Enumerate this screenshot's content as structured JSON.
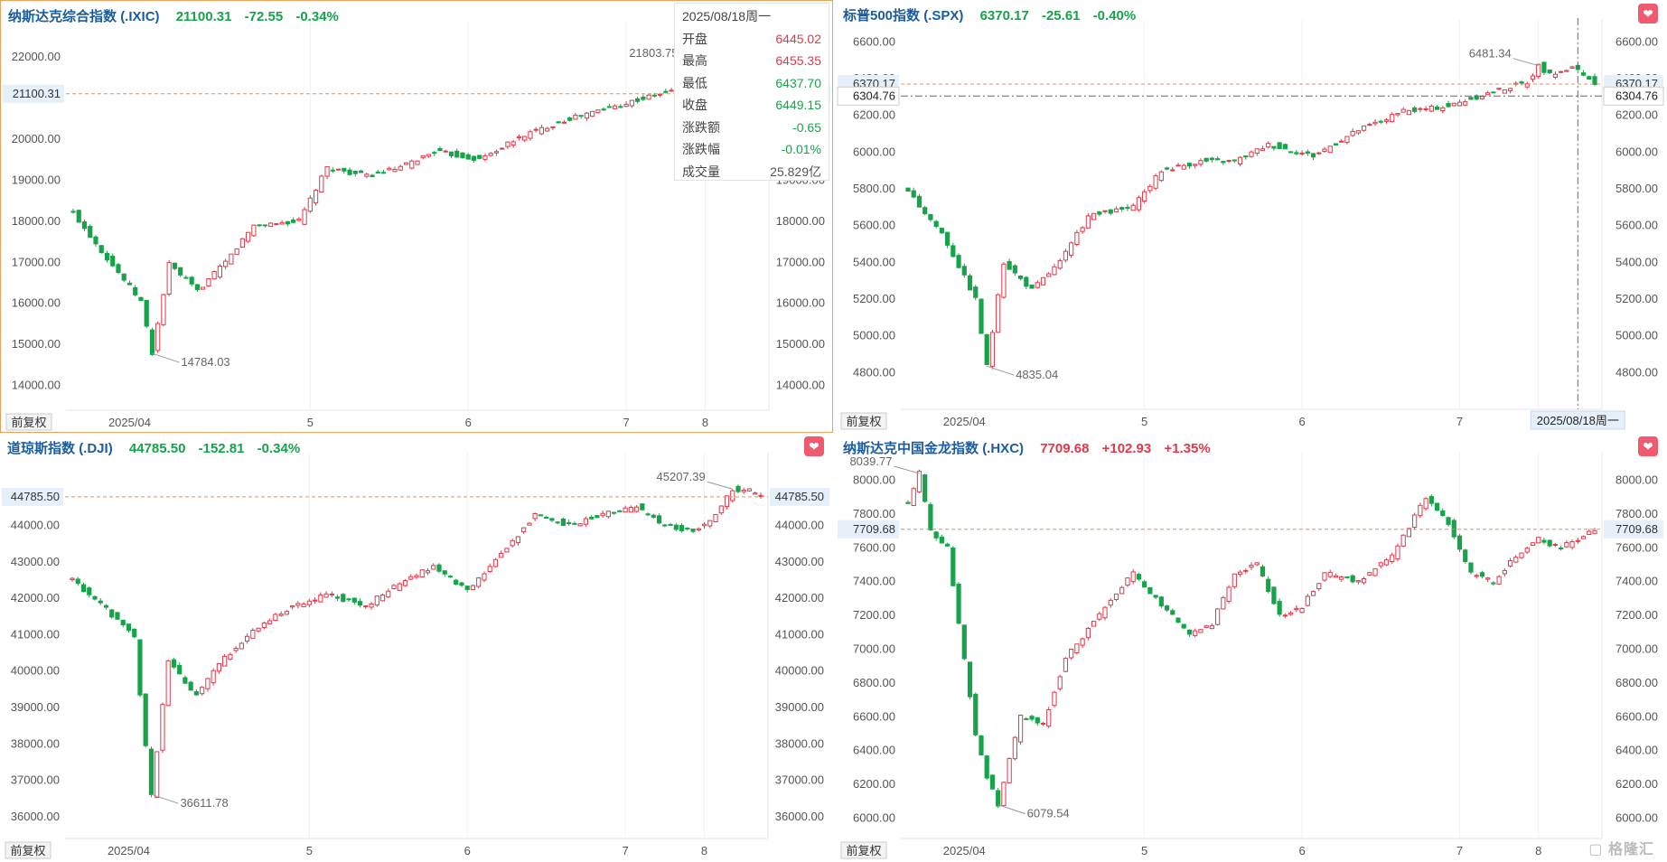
{
  "colors": {
    "up": "#e0394a",
    "down": "#16a34a",
    "accent": "#1b5c9e",
    "dash": "#e39060"
  },
  "footer_btn": "前复权",
  "watermark": "格隆汇",
  "panels": [
    {
      "name": "纳斯达克综合指数",
      "code": "(.IXIC)",
      "price": "21100.31",
      "change": "-72.55",
      "pct": "-0.34%",
      "dir": "down",
      "active": true,
      "heart_faded": true,
      "chart_data": {
        "type": "candlestick",
        "y_ticks": [
          "22000.00",
          "21000.00",
          "20000.00",
          "19000.00",
          "18000.00",
          "17000.00",
          "16000.00",
          "15000.00",
          "14000.00"
        ],
        "ylim": [
          13400,
          22700
        ],
        "x_labels": [
          "2025/04",
          "5",
          "6",
          "7",
          "8"
        ],
        "high_label": "21803.75",
        "low_label": "14784.03",
        "last": 21100.31,
        "last_label": "21100.31",
        "anchors": [
          [
            0,
            18200
          ],
          [
            6,
            17100
          ],
          [
            12,
            16050
          ],
          [
            14,
            14784
          ],
          [
            17,
            16950
          ],
          [
            22,
            16300
          ],
          [
            27,
            17000
          ],
          [
            32,
            17900
          ],
          [
            40,
            18000
          ],
          [
            45,
            19300
          ],
          [
            52,
            19100
          ],
          [
            58,
            19300
          ],
          [
            64,
            19700
          ],
          [
            72,
            19500
          ],
          [
            80,
            20100
          ],
          [
            88,
            20500
          ],
          [
            96,
            20800
          ],
          [
            104,
            21100
          ],
          [
            110,
            21300
          ],
          [
            112,
            21803
          ],
          [
            115,
            21100
          ],
          [
            118,
            21450
          ],
          [
            122,
            21200
          ]
        ]
      }
    },
    {
      "name": "标普500指数",
      "code": "(.SPX)",
      "price": "6370.17",
      "change": "-25.61",
      "pct": "-0.40%",
      "dir": "down",
      "active": false,
      "heart_faded": false,
      "chart_data": {
        "type": "candlestick",
        "y_ticks": [
          "6600.00",
          "6400.00",
          "6200.00",
          "6000.00",
          "5800.00",
          "5600.00",
          "5400.00",
          "5200.00",
          "5000.00",
          "4800.00"
        ],
        "ylim": [
          4600,
          6680
        ],
        "x_labels": [
          "2025/04",
          "5",
          "6",
          "7",
          "8"
        ],
        "high_label": "6481.34",
        "low_label": "4835.04",
        "last": 6370.17,
        "last_label": "6370.17",
        "cross_label": "6304.76",
        "cross_date": "2025/08/18周一",
        "anchors": [
          [
            0,
            5780
          ],
          [
            6,
            5560
          ],
          [
            12,
            5200
          ],
          [
            14,
            4835
          ],
          [
            17,
            5400
          ],
          [
            22,
            5250
          ],
          [
            27,
            5400
          ],
          [
            32,
            5650
          ],
          [
            40,
            5700
          ],
          [
            45,
            5900
          ],
          [
            52,
            5950
          ],
          [
            58,
            5950
          ],
          [
            64,
            6040
          ],
          [
            72,
            5980
          ],
          [
            80,
            6120
          ],
          [
            88,
            6220
          ],
          [
            96,
            6250
          ],
          [
            104,
            6330
          ],
          [
            110,
            6380
          ],
          [
            112,
            6470
          ],
          [
            114,
            6420
          ],
          [
            118,
            6460
          ],
          [
            122,
            6370
          ]
        ]
      }
    },
    {
      "name": "道琼斯指数",
      "code": "(.DJI)",
      "price": "44785.50",
      "change": "-152.81",
      "pct": "-0.34%",
      "dir": "down",
      "active": false,
      "heart_faded": false,
      "chart_data": {
        "type": "candlestick",
        "y_ticks": [
          "44000.00",
          "43000.00",
          "42000.00",
          "41000.00",
          "40000.00",
          "39000.00",
          "38000.00",
          "37000.00",
          "36000.00"
        ],
        "ylim": [
          35400,
          45800
        ],
        "x_labels": [
          "2025/04",
          "5",
          "6",
          "7",
          "8"
        ],
        "high_label": "45207.39",
        "low_label": "36611.78",
        "last": 44785.5,
        "last_label": "44785.50",
        "anchors": [
          [
            0,
            42500
          ],
          [
            6,
            41700
          ],
          [
            11,
            40900
          ],
          [
            13,
            37900
          ],
          [
            14,
            36612
          ],
          [
            17,
            40300
          ],
          [
            22,
            39300
          ],
          [
            26,
            40200
          ],
          [
            32,
            41100
          ],
          [
            38,
            41700
          ],
          [
            45,
            42100
          ],
          [
            52,
            41800
          ],
          [
            58,
            42400
          ],
          [
            64,
            42900
          ],
          [
            70,
            42200
          ],
          [
            76,
            43200
          ],
          [
            82,
            44300
          ],
          [
            88,
            44000
          ],
          [
            94,
            44300
          ],
          [
            100,
            44500
          ],
          [
            104,
            44100
          ],
          [
            110,
            43800
          ],
          [
            114,
            44300
          ],
          [
            117,
            45000
          ],
          [
            120,
            44950
          ],
          [
            122,
            44785
          ]
        ]
      }
    },
    {
      "name": "纳斯达克中国金龙指数",
      "code": "(.HXC)",
      "price": "7709.68",
      "change": "+102.93",
      "pct": "+1.35%",
      "dir": "up",
      "active": false,
      "heart_faded": false,
      "chart_data": {
        "type": "candlestick",
        "y_ticks": [
          "8000.00",
          "7800.00",
          "7600.00",
          "7400.00",
          "7200.00",
          "7000.00",
          "6800.00",
          "6600.00",
          "6400.00",
          "6200.00",
          "6000.00"
        ],
        "ylim": [
          5880,
          8120
        ],
        "x_labels": [
          "2025/04",
          "5",
          "6",
          "7",
          "8"
        ],
        "high_label": "8039.77",
        "low_label": "6079.54",
        "last": 7709.68,
        "last_label": "7709.68",
        "anchors": [
          [
            0,
            7850
          ],
          [
            2,
            8040
          ],
          [
            4,
            7700
          ],
          [
            7,
            7600
          ],
          [
            9,
            7150
          ],
          [
            12,
            6500
          ],
          [
            14,
            6250
          ],
          [
            16,
            6080
          ],
          [
            20,
            6600
          ],
          [
            24,
            6550
          ],
          [
            28,
            6950
          ],
          [
            34,
            7200
          ],
          [
            40,
            7450
          ],
          [
            44,
            7300
          ],
          [
            50,
            7100
          ],
          [
            54,
            7150
          ],
          [
            58,
            7450
          ],
          [
            62,
            7500
          ],
          [
            66,
            7200
          ],
          [
            70,
            7250
          ],
          [
            74,
            7450
          ],
          [
            80,
            7400
          ],
          [
            86,
            7550
          ],
          [
            92,
            7900
          ],
          [
            96,
            7750
          ],
          [
            100,
            7450
          ],
          [
            104,
            7400
          ],
          [
            108,
            7550
          ],
          [
            112,
            7650
          ],
          [
            116,
            7600
          ],
          [
            122,
            7710
          ]
        ]
      }
    }
  ]
}
